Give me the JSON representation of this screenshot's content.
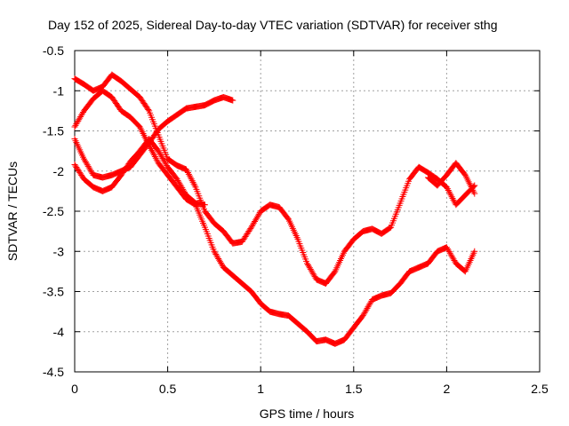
{
  "chart_data": {
    "type": "scatter",
    "title": "Day 152 of 2025, Sidereal Day-to-day VTEC variation (SDTVAR) for receiver sthg",
    "xlabel": "GPS time / hours",
    "ylabel": "SDTVAR / TECUs",
    "xlim": [
      0,
      2.5
    ],
    "ylim": [
      -4.5,
      -0.5
    ],
    "xticks": [
      0,
      0.5,
      1,
      1.5,
      2,
      2.5
    ],
    "yticks": [
      -0.5,
      -1,
      -1.5,
      -2,
      -2.5,
      -3,
      -3.5,
      -4,
      -4.5
    ],
    "xtick_labels": [
      "0",
      "0.5",
      "1",
      "1.5",
      "2",
      "2.5"
    ],
    "ytick_labels": [
      "-0.5",
      "-1",
      "-1.5",
      "-2",
      "-2.5",
      "-3",
      "-3.5",
      "-4",
      "-4.5"
    ],
    "grid": true,
    "marker": "plus",
    "color": "#ff0000",
    "series": [
      {
        "points": [
          [
            0,
            -0.85
          ],
          [
            0.05,
            -0.92
          ],
          [
            0.1,
            -1.0
          ],
          [
            0.15,
            -0.95
          ],
          [
            0.2,
            -0.8
          ],
          [
            0.25,
            -0.88
          ],
          [
            0.3,
            -0.98
          ],
          [
            0.35,
            -1.08
          ],
          [
            0.4,
            -1.25
          ],
          [
            0.45,
            -1.55
          ],
          [
            0.5,
            -1.85
          ],
          [
            0.55,
            -1.93
          ],
          [
            0.6,
            -1.98
          ],
          [
            0.65,
            -2.2
          ],
          [
            0.7,
            -2.5
          ],
          [
            0.75,
            -2.65
          ],
          [
            0.8,
            -2.75
          ],
          [
            0.85,
            -2.9
          ],
          [
            0.9,
            -2.88
          ],
          [
            0.95,
            -2.7
          ],
          [
            1.0,
            -2.5
          ],
          [
            1.05,
            -2.42
          ],
          [
            1.1,
            -2.45
          ],
          [
            1.15,
            -2.6
          ],
          [
            1.2,
            -2.85
          ],
          [
            1.25,
            -3.15
          ],
          [
            1.3,
            -3.35
          ],
          [
            1.35,
            -3.4
          ],
          [
            1.4,
            -3.25
          ],
          [
            1.45,
            -3.0
          ],
          [
            1.5,
            -2.85
          ],
          [
            1.55,
            -2.75
          ],
          [
            1.6,
            -2.72
          ],
          [
            1.65,
            -2.78
          ],
          [
            1.7,
            -2.7
          ],
          [
            1.75,
            -2.4
          ],
          [
            1.8,
            -2.1
          ],
          [
            1.85,
            -1.95
          ],
          [
            1.9,
            -2.02
          ],
          [
            1.95,
            -2.1
          ],
          [
            2.0,
            -2.2
          ],
          [
            2.05,
            -2.42
          ],
          [
            2.1,
            -2.3
          ],
          [
            2.15,
            -2.18
          ]
        ]
      },
      {
        "points": [
          [
            0,
            -1.45
          ],
          [
            0.05,
            -1.25
          ],
          [
            0.1,
            -1.1
          ],
          [
            0.15,
            -1.0
          ],
          [
            0.2,
            -1.08
          ],
          [
            0.25,
            -1.25
          ],
          [
            0.3,
            -1.33
          ],
          [
            0.35,
            -1.45
          ],
          [
            0.4,
            -1.68
          ],
          [
            0.45,
            -1.9
          ],
          [
            0.5,
            -2.05
          ],
          [
            0.55,
            -2.2
          ],
          [
            0.6,
            -2.35
          ],
          [
            0.65,
            -2.42
          ],
          [
            0.7,
            -2.7
          ],
          [
            0.75,
            -3.0
          ],
          [
            0.8,
            -3.2
          ],
          [
            0.85,
            -3.3
          ],
          [
            0.9,
            -3.4
          ],
          [
            0.95,
            -3.5
          ],
          [
            1.0,
            -3.65
          ],
          [
            1.05,
            -3.75
          ],
          [
            1.1,
            -3.78
          ],
          [
            1.15,
            -3.8
          ],
          [
            1.2,
            -3.9
          ],
          [
            1.25,
            -4.0
          ],
          [
            1.3,
            -4.12
          ],
          [
            1.35,
            -4.1
          ],
          [
            1.4,
            -4.15
          ],
          [
            1.45,
            -4.1
          ],
          [
            1.5,
            -3.95
          ],
          [
            1.55,
            -3.8
          ],
          [
            1.6,
            -3.6
          ],
          [
            1.65,
            -3.55
          ],
          [
            1.7,
            -3.52
          ],
          [
            1.75,
            -3.4
          ],
          [
            1.8,
            -3.25
          ],
          [
            1.85,
            -3.2
          ],
          [
            1.9,
            -3.15
          ],
          [
            1.95,
            -3.0
          ],
          [
            2.0,
            -2.95
          ],
          [
            2.05,
            -3.15
          ],
          [
            2.1,
            -3.25
          ],
          [
            2.15,
            -3.0
          ]
        ]
      },
      {
        "points": [
          [
            0,
            -1.6
          ],
          [
            0.05,
            -1.85
          ],
          [
            0.1,
            -2.05
          ],
          [
            0.15,
            -2.08
          ],
          [
            0.2,
            -2.05
          ],
          [
            0.25,
            -2.0
          ],
          [
            0.3,
            -1.95
          ],
          [
            0.35,
            -1.8
          ],
          [
            0.4,
            -1.65
          ],
          [
            0.45,
            -1.48
          ],
          [
            0.5,
            -1.38
          ],
          [
            0.55,
            -1.3
          ],
          [
            0.6,
            -1.22
          ],
          [
            0.65,
            -1.2
          ],
          [
            0.7,
            -1.18
          ],
          [
            0.75,
            -1.12
          ],
          [
            0.8,
            -1.08
          ],
          [
            0.85,
            -1.12
          ]
        ]
      },
      {
        "points": [
          [
            0,
            -1.92
          ],
          [
            0.05,
            -2.1
          ],
          [
            0.1,
            -2.2
          ],
          [
            0.15,
            -2.25
          ],
          [
            0.2,
            -2.2
          ],
          [
            0.25,
            -2.05
          ],
          [
            0.3,
            -1.88
          ],
          [
            0.35,
            -1.75
          ],
          [
            0.4,
            -1.6
          ],
          [
            0.45,
            -1.75
          ],
          [
            0.5,
            -1.95
          ],
          [
            0.55,
            -2.1
          ],
          [
            0.6,
            -2.3
          ],
          [
            0.65,
            -2.4
          ],
          [
            0.7,
            -2.42
          ]
        ]
      },
      {
        "points": [
          [
            1.9,
            -2.08
          ],
          [
            1.95,
            -2.18
          ],
          [
            2.0,
            -2.05
          ],
          [
            2.05,
            -1.9
          ],
          [
            2.1,
            -2.05
          ],
          [
            2.15,
            -2.28
          ]
        ]
      }
    ]
  }
}
